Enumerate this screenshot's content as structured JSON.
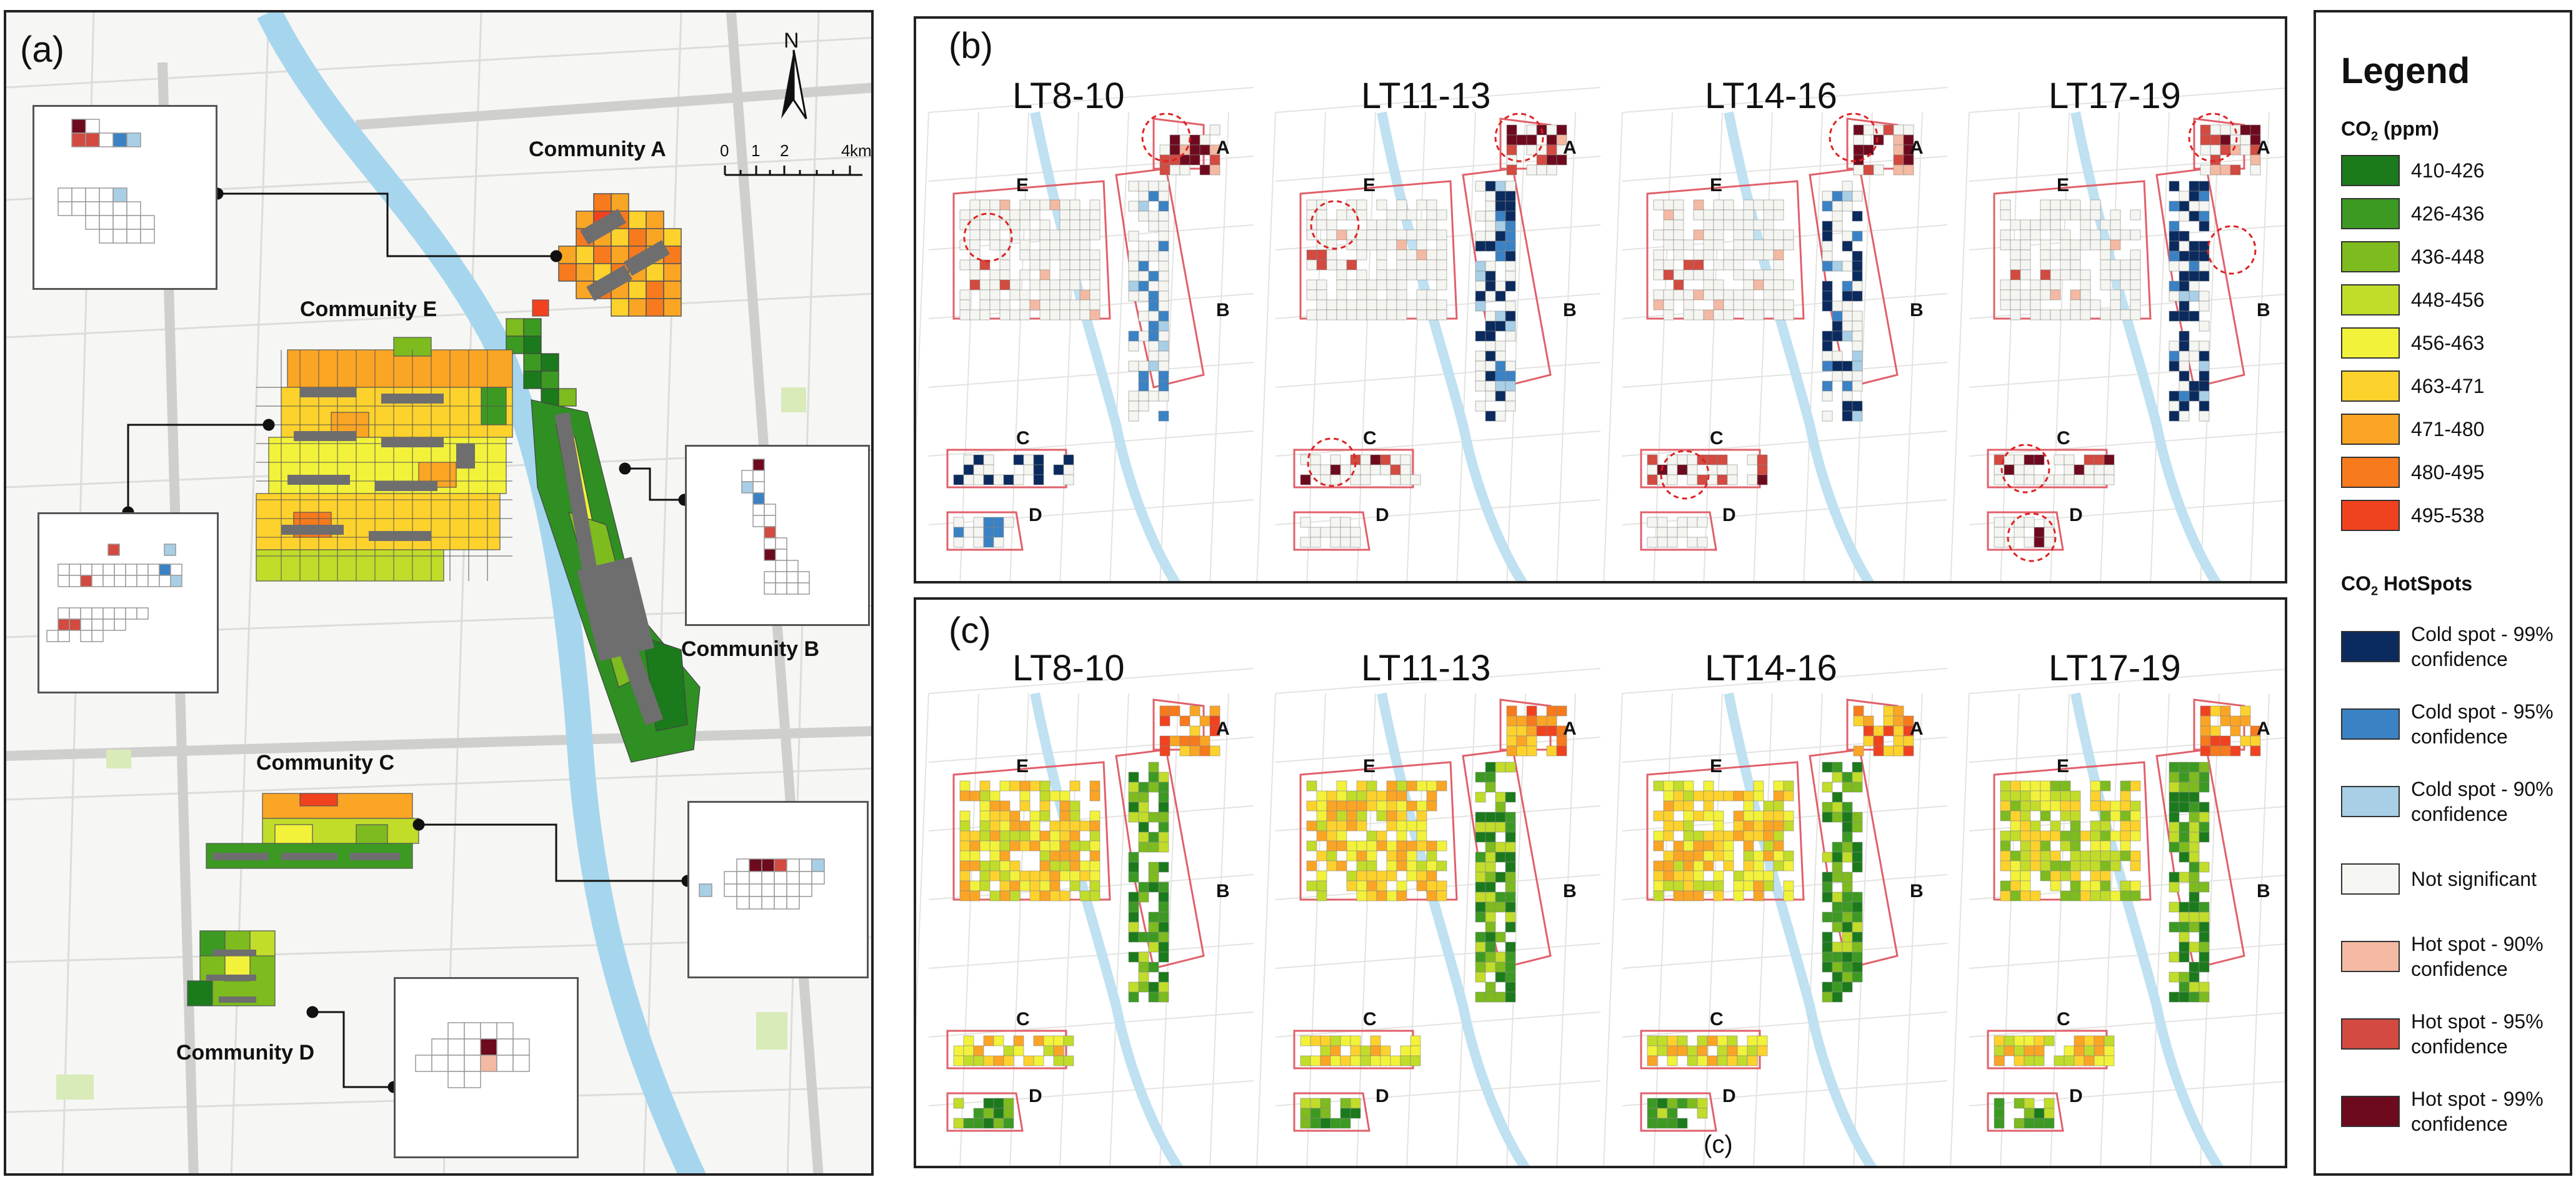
{
  "panel_a": {
    "label": "(a)",
    "communities": [
      "Community A",
      "Community B",
      "Community C",
      "Community D",
      "Community E"
    ],
    "north": "N",
    "scale_ticks": [
      "0",
      "1",
      "2",
      "4"
    ],
    "scale_unit": "km"
  },
  "panel_b": {
    "label": "(b)",
    "times": [
      "LT8-10",
      "LT11-13",
      "LT14-16",
      "LT17-19"
    ],
    "letters": [
      "A",
      "B",
      "C",
      "D",
      "E"
    ]
  },
  "panel_c": {
    "label": "(c)",
    "times": [
      "LT8-10",
      "LT11-13",
      "LT14-16",
      "LT17-19"
    ],
    "letters": [
      "A",
      "B",
      "C",
      "D",
      "E"
    ],
    "stray_mark": "(c)"
  },
  "legend": {
    "title": "Legend",
    "co2_heading_main": "CO",
    "co2_heading_sub": "2",
    "co2_heading_tail": " (ppm)",
    "co2_classes": [
      {
        "label": "410-426",
        "color": "#1b7a1b"
      },
      {
        "label": "426-436",
        "color": "#3c9a22"
      },
      {
        "label": "436-448",
        "color": "#7dbb1e"
      },
      {
        "label": "448-456",
        "color": "#c2dc2a"
      },
      {
        "label": "456-463",
        "color": "#f2f23a"
      },
      {
        "label": "463-471",
        "color": "#fdd22c"
      },
      {
        "label": "471-480",
        "color": "#fba524"
      },
      {
        "label": "480-495",
        "color": "#f77a1d"
      },
      {
        "label": "495-538",
        "color": "#f0421f"
      }
    ],
    "hotspot_heading_main": "CO",
    "hotspot_heading_sub": "2",
    "hotspot_heading_tail": " HotSpots",
    "hotspot_classes": [
      {
        "line1": "Cold spot - 99%",
        "line2": "confidence",
        "color": "#0b2a5e"
      },
      {
        "line1": "Cold spot - 95%",
        "line2": "confidence",
        "color": "#3a82c4"
      },
      {
        "line1": "Cold spot - 90%",
        "line2": "confidence",
        "color": "#a8cfe6"
      },
      {
        "line1": "Not significant",
        "line2": "",
        "color": "#f5f5f1"
      },
      {
        "line1": "Hot spot - 90%",
        "line2": "confidence",
        "color": "#f4b9a2"
      },
      {
        "line1": "Hot spot -  95%",
        "line2": "confidence",
        "color": "#d24a40"
      },
      {
        "line1": "Hot spot -  99%",
        "line2": "confidence",
        "color": "#6e0a1e"
      }
    ]
  }
}
